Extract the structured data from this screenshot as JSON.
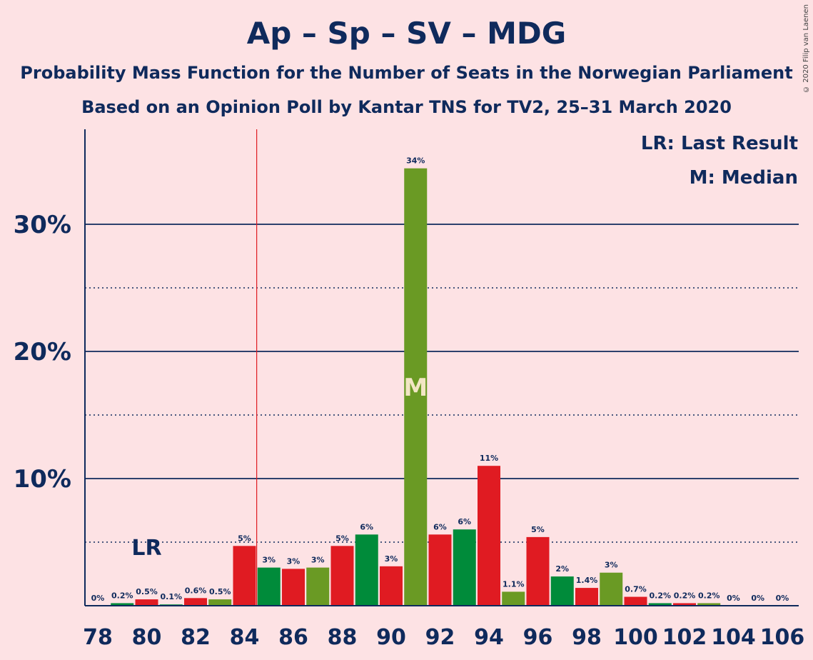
{
  "header": {
    "title": "Ap – Sp – SV – MDG",
    "subtitle1": "Probability Mass Function for the Number of Seats in the Norwegian Parliament",
    "subtitle2": "Based on an Opinion Poll by Kantar TNS for TV2, 25–31 March 2020",
    "copyright": "© 2020 Filip van Laenen"
  },
  "legend": {
    "lr": "LR: Last Result",
    "median": "M: Median"
  },
  "colors": {
    "red": "#e01b22",
    "green": "#008b3a",
    "olive": "#6a9a24",
    "axis": "#0f2a5c",
    "lastResultLine": "#e01b22",
    "background": "#fde2e4",
    "median_label": "#f2e6c4"
  },
  "chart_data": {
    "type": "bar",
    "x": [
      78,
      79,
      80,
      81,
      82,
      83,
      84,
      85,
      86,
      87,
      88,
      89,
      90,
      91,
      92,
      93,
      94,
      95,
      96,
      97,
      98,
      99,
      100,
      101,
      102,
      103,
      104,
      105,
      106
    ],
    "values": [
      0,
      0.2,
      0.5,
      0.1,
      0.6,
      0.5,
      4.7,
      3.0,
      2.9,
      3.0,
      4.7,
      5.6,
      3.1,
      34.4,
      5.6,
      6.0,
      11.0,
      1.1,
      5.4,
      2.3,
      1.4,
      2.6,
      0.7,
      0.2,
      0.2,
      0.2,
      0,
      0,
      0
    ],
    "labels": [
      "0%",
      "0.2%",
      "0.5%",
      "0.1%",
      "0.6%",
      "0.5%",
      "5%",
      "3%",
      "3%",
      "3%",
      "5%",
      "6%",
      "3%",
      "34%",
      "6%",
      "6%",
      "11%",
      "1.1%",
      "5%",
      "2%",
      "1.4%",
      "3%",
      "0.7%",
      "0.2%",
      "0.2%",
      "0.2%",
      "0%",
      "0%",
      "0%"
    ],
    "colors": [
      "red",
      "green",
      "red",
      "green",
      "red",
      "olive",
      "red",
      "green",
      "red",
      "olive",
      "red",
      "green",
      "red",
      "olive",
      "red",
      "green",
      "red",
      "olive",
      "red",
      "green",
      "red",
      "olive",
      "red",
      "green",
      "red",
      "olive",
      "red",
      "green",
      "red"
    ],
    "xtick_labels": [
      "78",
      "80",
      "82",
      "84",
      "86",
      "88",
      "90",
      "92",
      "94",
      "96",
      "98",
      "100",
      "102",
      "104",
      "106"
    ],
    "ytick_labels": [
      "10%",
      "20%",
      "30%"
    ],
    "ylim": [
      0,
      37.5
    ],
    "solid_gridlines": [
      10,
      20,
      30
    ],
    "dotted_gridlines": [
      5,
      15,
      25
    ],
    "last_result_seat": 84.5,
    "last_result_marker": "LR",
    "last_result_marker_seat": 80,
    "median_seat": 91,
    "median_marker": "M"
  }
}
